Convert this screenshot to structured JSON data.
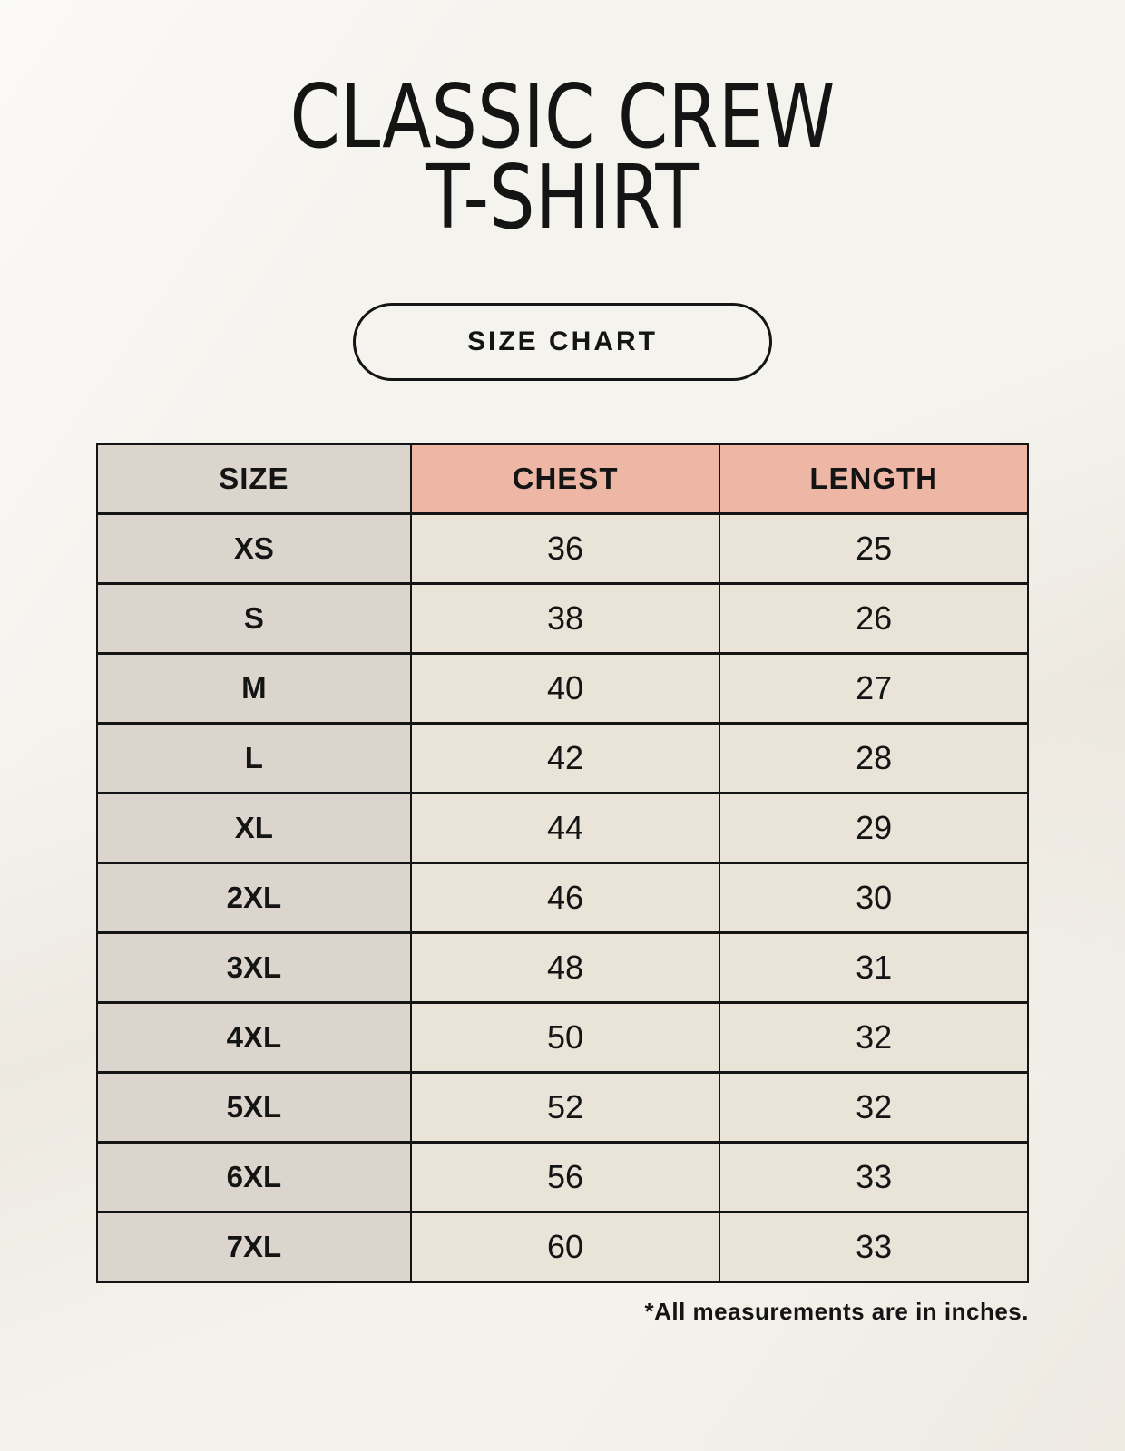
{
  "page": {
    "title_lines": [
      "CLASSIC CREW",
      "T-SHIRT"
    ],
    "badge_label": "SIZE CHART",
    "footnote": "*All measurements are in inches."
  },
  "colors": {
    "page_bg": "#f2efe8",
    "accent_salmon": "#eeb7a5",
    "neutral_gray": "#dcd5ce",
    "cell_cream": "#eae3d7",
    "ink": "#141414"
  },
  "chart_data": {
    "type": "table",
    "title": "CLASSIC CREW T-SHIRT",
    "columns": [
      "SIZE",
      "CHEST",
      "LENGTH"
    ],
    "rows": [
      [
        "XS",
        36,
        25
      ],
      [
        "S",
        38,
        26
      ],
      [
        "M",
        40,
        27
      ],
      [
        "L",
        42,
        28
      ],
      [
        "XL",
        44,
        29
      ],
      [
        "2XL",
        46,
        30
      ],
      [
        "3XL",
        48,
        31
      ],
      [
        "4XL",
        50,
        32
      ],
      [
        "5XL",
        52,
        32
      ],
      [
        "6XL",
        56,
        33
      ],
      [
        "7XL",
        60,
        33
      ]
    ],
    "units_note": "*All measurements are in inches.",
    "layout": "header row accented salmon except first column; first column gray; grid on"
  }
}
